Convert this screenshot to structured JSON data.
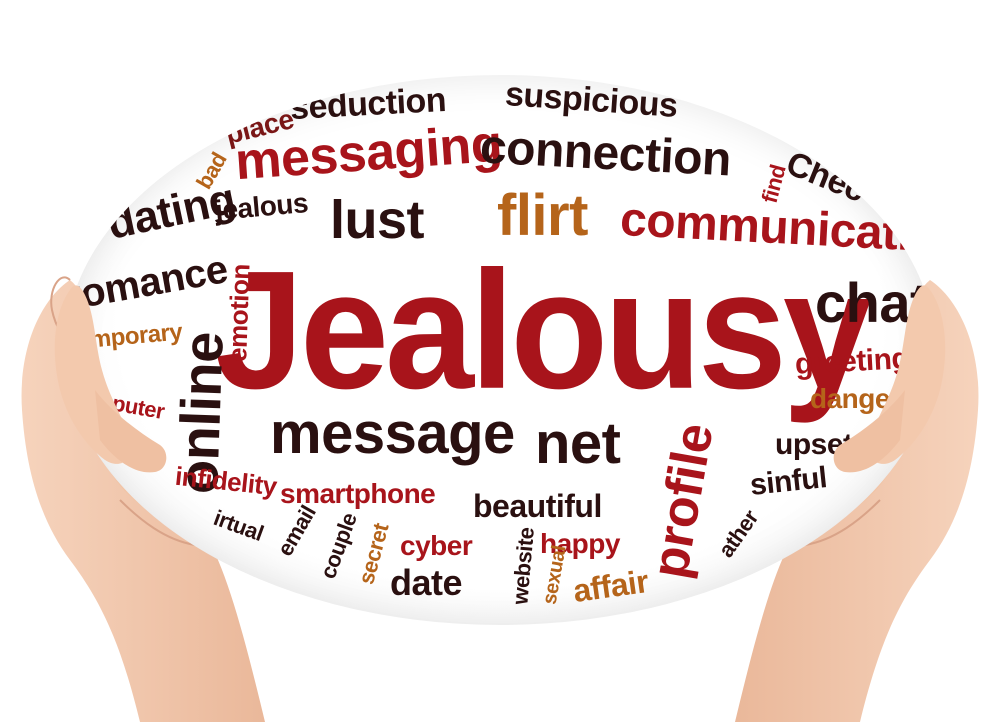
{
  "image": {
    "main_word": "Jealousy",
    "words": {
      "seduction": "seduction",
      "suspicious": "suspicious",
      "messaging": "messaging",
      "connection": "connection",
      "dating": "dating",
      "jealous": "jealous",
      "lust": "lust",
      "flirt": "flirt",
      "communication": "communication",
      "romance": "romance",
      "chat": "chat",
      "emotion": "emotion",
      "online": "online",
      "temporary": "emporary",
      "computer": "mputer",
      "greeting": "greeting",
      "danger": "danger",
      "message": "message",
      "net": "net",
      "profile": "profile",
      "upset": "upset",
      "infidelity": "infidelity",
      "sinful": "sinful",
      "smartphone": "smartphone",
      "beautiful": "beautiful",
      "virtual": "irtual",
      "email": "email",
      "couple": "couple",
      "secret": "secret",
      "cyber": "cyber",
      "website": "website",
      "happy": "happy",
      "sexual": "sexual",
      "date": "date",
      "affair": "affair",
      "find": "find",
      "check": "Chec",
      "bad": "bad",
      "place": "place",
      "cheat": "ather"
    },
    "colors": {
      "red": "#a8141b",
      "dark": "#2a1010",
      "orange": "#b5641a",
      "skin": "#f3c9ad"
    }
  }
}
